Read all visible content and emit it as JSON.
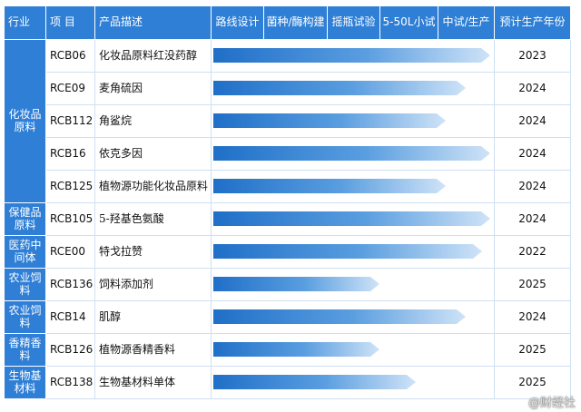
{
  "header": {
    "industry": "行业",
    "project": "项  目",
    "description": "产品描述",
    "stage_route": "路线设计",
    "stage_strain": "菌种/酶构建",
    "stage_flask": "摇瓶试验",
    "stage_pilot": "5-50L小试",
    "stage_production": "中试/生产",
    "year": "预计生产年份"
  },
  "rows": [
    {
      "code": "RCB06",
      "desc": "化妆品原料红没药醇",
      "year": "2023",
      "progress": 1.0
    },
    {
      "code": "RCE09",
      "desc": "麦角硫因",
      "year": "2024",
      "progress": 0.91
    },
    {
      "code": "RCB112",
      "desc": "角鲨烷",
      "year": "2024",
      "progress": 0.84
    },
    {
      "code": "RCB16",
      "desc": "依克多因",
      "year": "2024",
      "progress": 1.0
    },
    {
      "code": "RCB125",
      "desc": "植物源功能化妆品原料",
      "year": "2024",
      "progress": 0.84
    },
    {
      "code": "RCB105",
      "desc": "5-羟基色氨酸",
      "year": "2024",
      "progress": 1.0
    },
    {
      "code": "RCE00",
      "desc": "特戈拉赞",
      "year": "2022",
      "progress": 0.97
    },
    {
      "code": "RCB136",
      "desc": "饲料添加剂",
      "year": "2025",
      "progress": 0.6
    },
    {
      "code": "RCB14",
      "desc": "肌醇",
      "year": "2024",
      "progress": 0.91
    },
    {
      "code": "RCB126",
      "desc": "植物源香精香料",
      "year": "2025",
      "progress": 0.6
    },
    {
      "code": "RCB138",
      "desc": "生物基材料单体",
      "year": "2025",
      "progress": 0.73
    }
  ],
  "industries": {
    "cosmetics": "化妆品原料",
    "health": "保健品原料",
    "pharma": "医药中间体",
    "agri1": "农业饲料",
    "agri2": "农业饲料",
    "flavor": "香精香料",
    "biomaterial": "生物基材料"
  },
  "watermark": "@财经社",
  "colors": {
    "header_bg": "#2f7fd6",
    "arrow_start": "#1f6fc8",
    "arrow_end": "#cfe3f7"
  }
}
